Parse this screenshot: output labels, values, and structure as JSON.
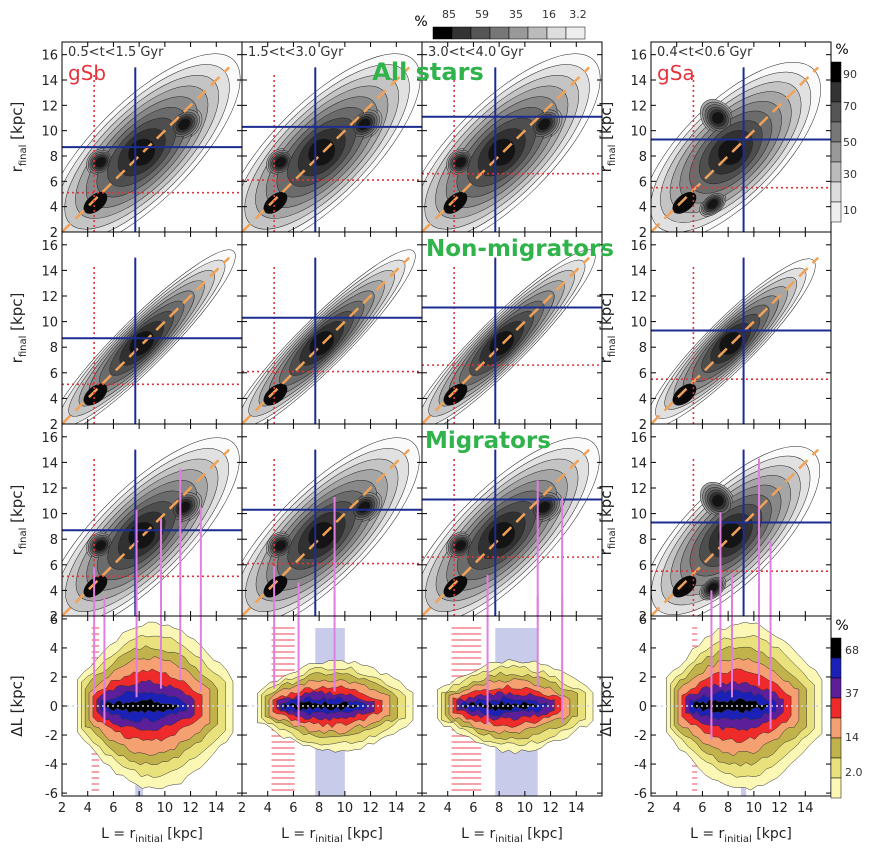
{
  "chart_data": {
    "type": "heatmap",
    "description_free": true,
    "columns": [
      {
        "time_label": "0.5<t<1.5 Gyr",
        "galaxy": "gSb",
        "ref_r": 4.5,
        "bar_L": 7.7,
        "bar_rfinal": 8.7,
        "cr_rfinal": 5.1,
        "shade_L": [
          7.7,
          8.3
        ],
        "hatch_L": [
          4.3,
          4.9
        ],
        "mig_lines": [
          [
            4.5,
            5.8
          ],
          [
            5.3,
            3.4
          ],
          [
            7.8,
            10.3
          ],
          [
            9.7,
            9.6
          ],
          [
            11.2,
            13.5
          ],
          [
            12.8,
            10.5
          ]
        ],
        "dl_lines": [
          [
            4.5,
            0.8
          ],
          [
            5.3,
            -1.2
          ],
          [
            7.8,
            0.6
          ],
          [
            9.7,
            1.2
          ],
          [
            11.2,
            1.8
          ],
          [
            12.8,
            1.0
          ]
        ]
      },
      {
        "time_label": "1.5<t<3.0 Gyr",
        "galaxy": "",
        "ref_r": 4.5,
        "bar_L": 7.7,
        "bar_rfinal": 10.3,
        "cr_rfinal": 6.1,
        "shade_L": [
          7.7,
          10.0
        ],
        "hatch_L": [
          4.3,
          6.1
        ],
        "mig_lines": [
          [
            4.5,
            5.9
          ],
          [
            6.4,
            4.6
          ],
          [
            9.2,
            11.3
          ]
        ],
        "dl_lines": [
          [
            4.5,
            1.2
          ],
          [
            6.4,
            -1.4
          ],
          [
            9.2,
            1.0
          ]
        ]
      },
      {
        "time_label": "3.0<t<4.0 Gyr",
        "galaxy": "",
        "ref_r": 4.5,
        "bar_L": 7.7,
        "bar_rfinal": 11.1,
        "cr_rfinal": 6.6,
        "shade_L": [
          7.7,
          11.0
        ],
        "hatch_L": [
          4.3,
          6.6
        ],
        "mig_lines": [
          [
            7.1,
            5.2
          ],
          [
            11.0,
            12.6
          ],
          [
            12.9,
            11.2
          ]
        ],
        "dl_lines": [
          [
            7.1,
            -1.3
          ],
          [
            11.0,
            1.3
          ],
          [
            12.9,
            -1.2
          ]
        ]
      },
      {
        "time_label": "0.4<t<0.6 Gyr",
        "galaxy": "gSa",
        "ref_r": 5.3,
        "bar_L": 9.2,
        "bar_rfinal": 9.3,
        "cr_rfinal": 5.5,
        "shade_L": [
          9.0,
          9.4
        ],
        "hatch_L": [
          5.2,
          5.6
        ],
        "mig_lines": [
          [
            6.7,
            4.0
          ],
          [
            7.4,
            10.1
          ],
          [
            8.3,
            5.3
          ],
          [
            10.4,
            14.3
          ],
          [
            11.3,
            7.9
          ]
        ],
        "dl_lines": [
          [
            6.7,
            -2.3
          ],
          [
            7.4,
            1.3
          ],
          [
            8.3,
            0.6
          ],
          [
            10.4,
            1.4
          ],
          [
            11.3,
            -1.6
          ]
        ]
      }
    ],
    "row_labels": [
      "All stars",
      "Non-migrators",
      "Migrators"
    ],
    "galaxy_labels": [
      "gSb",
      "gSa"
    ],
    "ylabel_top": "r",
    "ylabel_top_sub": "final",
    "ylabel_top_unit": "[kpc]",
    "ylabel_bottom": "ΔL",
    "ylabel_bottom_unit": "[kpc]",
    "xlabel_main": "L = r",
    "xlabel_sub": "initial",
    "xlabel_unit": "[kpc]",
    "x_range": [
      2,
      16
    ],
    "x_ticks": [
      2,
      4,
      6,
      8,
      10,
      12,
      14
    ],
    "y_range_top": [
      2,
      17
    ],
    "y_ticks_top": [
      2,
      4,
      6,
      8,
      10,
      12,
      14,
      16
    ],
    "y_range_bottom": [
      -6.2,
      6.2
    ],
    "y_ticks_bottom": [
      -6,
      -4,
      -2,
      0,
      2,
      4,
      6
    ],
    "colorbar_gray_horizontal": {
      "unit": "%",
      "labels": [
        "85",
        "59",
        "35",
        "16",
        "3.2"
      ]
    },
    "colorbar_gray_vertical": {
      "unit": "%",
      "labels": [
        "90",
        "70",
        "50",
        "30",
        "10"
      ]
    },
    "colorbar_color": {
      "unit": "%",
      "labels": [
        "68",
        "37",
        "14",
        "2.0"
      ]
    },
    "gray_levels": [
      "#fafafa",
      "#e1e1e1",
      "#c4c4c4",
      "#a6a6a6",
      "#888888",
      "#6b6b6b",
      "#4e4e4e",
      "#313131",
      "#141414"
    ],
    "color_levels": [
      "#fbf7b5",
      "#e9e27c",
      "#c1b24c",
      "#f5a070",
      "#ee2a2a",
      "#5d1e99",
      "#1b21b6",
      "#000000"
    ],
    "line_colors": {
      "one_to_one": "#f2a257",
      "bar": "#1c2c8f",
      "corotation": "#e0333c",
      "migrators": "#e07fe0",
      "shade": "#c9cbeb",
      "hatch": "#f5a3ab",
      "zero_line": "#cfd3ea"
    }
  }
}
